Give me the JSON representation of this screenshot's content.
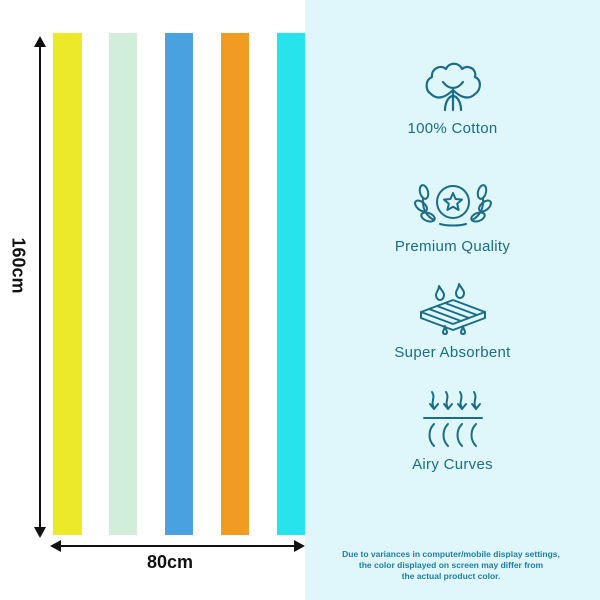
{
  "stripes": [
    {
      "color": "#ece82a"
    },
    {
      "color": "#d1eedb"
    },
    {
      "color": "#49a1df"
    },
    {
      "color": "#f29b23"
    },
    {
      "color": "#27e3ec"
    }
  ],
  "dimensions": {
    "height_label": "160cm",
    "width_label": "80cm"
  },
  "features": [
    {
      "icon": "cotton-icon",
      "label": "100% Cotton"
    },
    {
      "icon": "quality-star-icon",
      "label": "Premium Quality"
    },
    {
      "icon": "absorbent-icon",
      "label": "Super  Absorbent"
    },
    {
      "icon": "airflow-icon",
      "label": "Airy Curves"
    }
  ],
  "disclaimer": "Due to variances in computer/mobile display settings,\nthe color displayed on screen may differ from\nthe actual product color.",
  "colors": {
    "accent": "#1a6d86",
    "panel_background": "#dff6fa"
  }
}
